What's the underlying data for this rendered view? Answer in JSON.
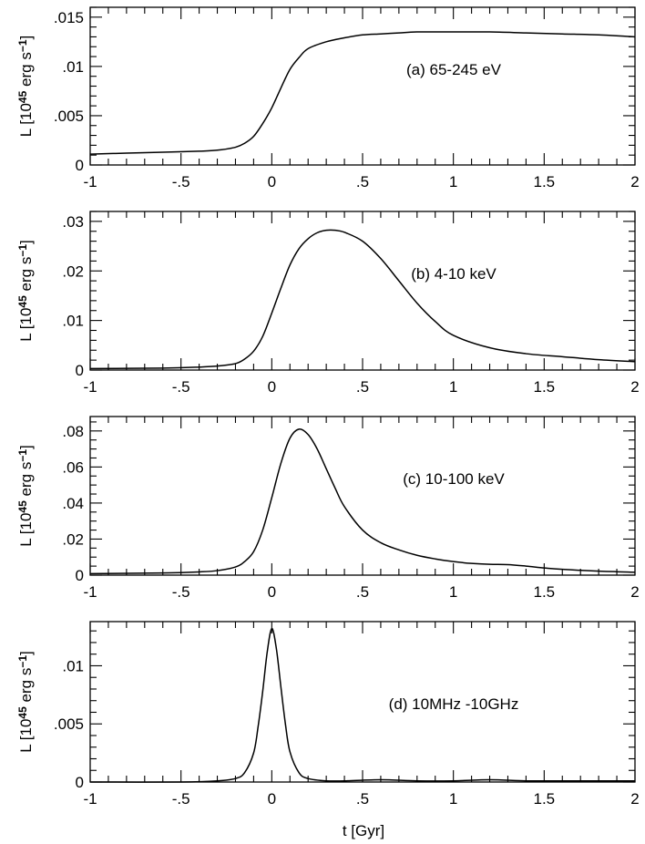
{
  "chart_data": [
    {
      "type": "line",
      "annotation": "(a) 65-245 eV",
      "ylabel": {
        "prefix": "L  [10",
        "exp": "45",
        "mid": " erg  s",
        "exp2": "−1",
        "suffix": "]"
      },
      "xlim": [
        -1,
        2
      ],
      "ylim": [
        0,
        0.016
      ],
      "xticks": [
        {
          "v": -1,
          "label": "-1"
        },
        {
          "v": -0.5,
          "label": "-.5"
        },
        {
          "v": 0,
          "label": "0"
        },
        {
          "v": 0.5,
          "label": ".5"
        },
        {
          "v": 1,
          "label": "1"
        },
        {
          "v": 1.5,
          "label": "1.5"
        },
        {
          "v": 2,
          "label": "2"
        }
      ],
      "yticks": [
        {
          "v": 0,
          "label": "0"
        },
        {
          "v": 0.005,
          "label": ".005"
        },
        {
          "v": 0.01,
          "label": ".01"
        },
        {
          "v": 0.015,
          "label": ".015"
        }
      ],
      "x_minor": 0.1,
      "y_minor": 0.001,
      "x": [
        -1.0,
        -0.8,
        -0.6,
        -0.4,
        -0.3,
        -0.2,
        -0.15,
        -0.1,
        -0.05,
        0.0,
        0.05,
        0.1,
        0.15,
        0.2,
        0.3,
        0.4,
        0.5,
        0.6,
        0.7,
        0.8,
        1.0,
        1.2,
        1.4,
        1.6,
        1.8,
        2.0
      ],
      "y": [
        0.0011,
        0.0012,
        0.0013,
        0.0014,
        0.0015,
        0.0018,
        0.0022,
        0.0029,
        0.0042,
        0.0058,
        0.0078,
        0.0097,
        0.0109,
        0.0118,
        0.0125,
        0.0129,
        0.0132,
        0.0133,
        0.0134,
        0.0135,
        0.0135,
        0.0135,
        0.0134,
        0.0133,
        0.0132,
        0.013
      ]
    },
    {
      "type": "line",
      "annotation": "(b) 4-10 keV",
      "ylabel": {
        "prefix": "L  [10",
        "exp": "45",
        "mid": " erg  s",
        "exp2": "−1",
        "suffix": "]"
      },
      "xlim": [
        -1,
        2
      ],
      "ylim": [
        0,
        0.032
      ],
      "xticks": [
        {
          "v": -1,
          "label": "-1"
        },
        {
          "v": -0.5,
          "label": "-.5"
        },
        {
          "v": 0,
          "label": "0"
        },
        {
          "v": 0.5,
          "label": ".5"
        },
        {
          "v": 1,
          "label": "1"
        },
        {
          "v": 1.5,
          "label": "1.5"
        },
        {
          "v": 2,
          "label": "2"
        }
      ],
      "yticks": [
        {
          "v": 0,
          "label": "0"
        },
        {
          "v": 0.01,
          "label": ".01"
        },
        {
          "v": 0.02,
          "label": ".02"
        },
        {
          "v": 0.03,
          "label": ".03"
        }
      ],
      "x_minor": 0.1,
      "y_minor": 0.002,
      "x": [
        -1.0,
        -0.6,
        -0.4,
        -0.3,
        -0.2,
        -0.15,
        -0.1,
        -0.05,
        0.0,
        0.05,
        0.1,
        0.15,
        0.2,
        0.25,
        0.3,
        0.35,
        0.4,
        0.5,
        0.6,
        0.7,
        0.8,
        0.9,
        1.0,
        1.2,
        1.4,
        1.6,
        1.8,
        2.0
      ],
      "y": [
        0.0003,
        0.0004,
        0.0006,
        0.0008,
        0.0013,
        0.0022,
        0.0038,
        0.0068,
        0.0115,
        0.0165,
        0.0212,
        0.0245,
        0.0265,
        0.0277,
        0.0282,
        0.0282,
        0.0278,
        0.026,
        0.0225,
        0.018,
        0.0135,
        0.0098,
        0.007,
        0.0045,
        0.0033,
        0.0027,
        0.0021,
        0.0017
      ]
    },
    {
      "type": "line",
      "annotation": "(c) 10-100 keV",
      "ylabel": {
        "prefix": "L  [10",
        "exp": "45",
        "mid": " erg  s",
        "exp2": "−1",
        "suffix": "]"
      },
      "xlim": [
        -1,
        2
      ],
      "ylim": [
        0,
        0.088
      ],
      "xticks": [
        {
          "v": -1,
          "label": "-1"
        },
        {
          "v": -0.5,
          "label": "-.5"
        },
        {
          "v": 0,
          "label": "0"
        },
        {
          "v": 0.5,
          "label": ".5"
        },
        {
          "v": 1,
          "label": "1"
        },
        {
          "v": 1.5,
          "label": "1.5"
        },
        {
          "v": 2,
          "label": "2"
        }
      ],
      "yticks": [
        {
          "v": 0,
          "label": "0"
        },
        {
          "v": 0.02,
          "label": ".02"
        },
        {
          "v": 0.04,
          "label": ".04"
        },
        {
          "v": 0.06,
          "label": ".06"
        },
        {
          "v": 0.08,
          "label": ".08"
        }
      ],
      "x_minor": 0.1,
      "y_minor": 0.005,
      "x": [
        -1.0,
        -0.6,
        -0.4,
        -0.3,
        -0.2,
        -0.15,
        -0.1,
        -0.05,
        0.0,
        0.05,
        0.1,
        0.15,
        0.2,
        0.25,
        0.3,
        0.35,
        0.4,
        0.5,
        0.6,
        0.7,
        0.8,
        0.9,
        1.0,
        1.1,
        1.2,
        1.3,
        1.4,
        1.5,
        1.6,
        1.8,
        2.0
      ],
      "y": [
        0.0008,
        0.0012,
        0.0018,
        0.0025,
        0.0045,
        0.0075,
        0.013,
        0.025,
        0.043,
        0.062,
        0.076,
        0.081,
        0.078,
        0.07,
        0.059,
        0.048,
        0.038,
        0.025,
        0.018,
        0.014,
        0.011,
        0.009,
        0.0075,
        0.0065,
        0.006,
        0.0058,
        0.005,
        0.004,
        0.0032,
        0.0022,
        0.0016
      ]
    },
    {
      "type": "line",
      "annotation": "(d) 10MHz -10GHz",
      "ylabel": {
        "prefix": "L  [10",
        "exp": "45",
        "mid": " erg  s",
        "exp2": "−1",
        "suffix": "]"
      },
      "xlim": [
        -1,
        2
      ],
      "ylim": [
        0,
        0.0138
      ],
      "xticks": [
        {
          "v": -1,
          "label": "-1"
        },
        {
          "v": -0.5,
          "label": "-.5"
        },
        {
          "v": 0,
          "label": "0"
        },
        {
          "v": 0.5,
          "label": ".5"
        },
        {
          "v": 1,
          "label": "1"
        },
        {
          "v": 1.5,
          "label": "1.5"
        },
        {
          "v": 2,
          "label": "2"
        }
      ],
      "yticks": [
        {
          "v": 0,
          "label": "0"
        },
        {
          "v": 0.005,
          "label": ".005"
        },
        {
          "v": 0.01,
          "label": ".01"
        }
      ],
      "x_minor": 0.1,
      "y_minor": 0.001,
      "x": [
        -1.0,
        -0.5,
        -0.3,
        -0.2,
        -0.15,
        -0.1,
        -0.075,
        -0.05,
        -0.025,
        0.0,
        0.025,
        0.05,
        0.075,
        0.1,
        0.15,
        0.2,
        0.3,
        0.4,
        0.6,
        0.8,
        1.0,
        1.2,
        1.4,
        1.6,
        1.8,
        2.0
      ],
      "y": [
        0.0,
        0.0,
        0.0001,
        0.0003,
        0.0008,
        0.0025,
        0.0048,
        0.0078,
        0.0112,
        0.0132,
        0.0115,
        0.0082,
        0.005,
        0.0026,
        0.0008,
        0.0003,
        0.0001,
        0.0001,
        0.0002,
        0.0001,
        0.0001,
        0.0002,
        0.0001,
        0.0001,
        0.0001,
        0.0001
      ]
    }
  ],
  "xaxis_title": "t [Gyr]"
}
